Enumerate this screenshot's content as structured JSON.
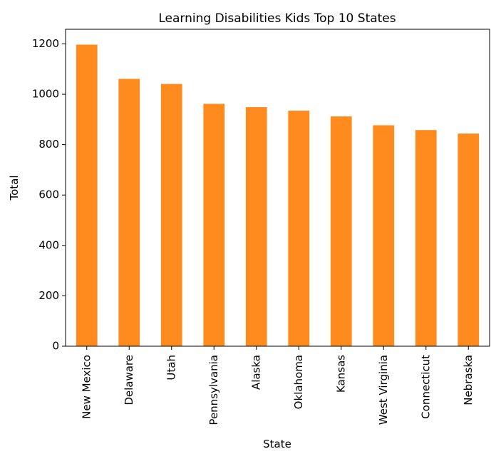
{
  "chart_data": {
    "type": "bar",
    "title": "Learning Disabilities Kids Top 10 States",
    "xlabel": "State",
    "ylabel": "Total",
    "categories": [
      "New Mexico",
      "Delaware",
      "Utah",
      "Pennsylvania",
      "Alaska",
      "Oklahoma",
      "Kansas",
      "West Virginia",
      "Connecticut",
      "Nebraska"
    ],
    "values": [
      1197,
      1061,
      1041,
      962,
      949,
      935,
      912,
      877,
      858,
      844
    ],
    "ylim": [
      0,
      1258
    ],
    "yticks": [
      0,
      200,
      400,
      600,
      800,
      1000,
      1200
    ],
    "bar_color": "#ff8a1d",
    "grid": false,
    "legend": "none"
  }
}
